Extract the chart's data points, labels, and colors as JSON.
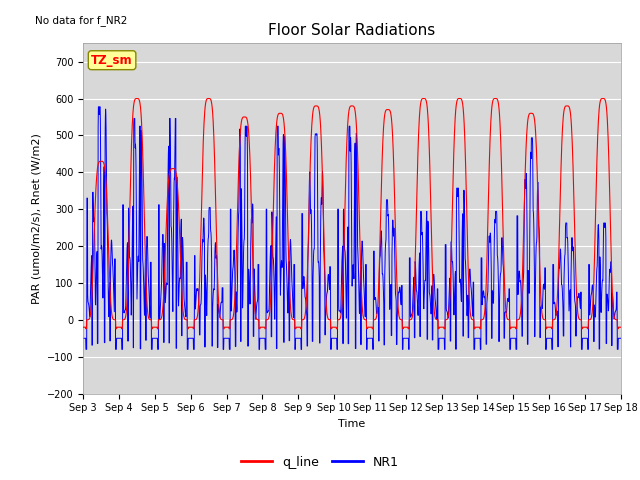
{
  "title": "Floor Solar Radiations",
  "no_data_text": "No data for f_NR2",
  "xlabel": "Time",
  "ylabel": "PAR (umol/m2/s), Rnet (W/m2)",
  "ylim": [
    -200,
    750
  ],
  "yticks": [
    -200,
    -100,
    0,
    100,
    200,
    300,
    400,
    500,
    600,
    700
  ],
  "x_tick_labels": [
    "Sep 3",
    "Sep 4",
    "Sep 5",
    "Sep 6",
    "Sep 7",
    "Sep 8",
    "Sep 9",
    "Sep 10",
    "Sep 11",
    "Sep 12",
    "Sep 13",
    "Sep 14",
    "Sep 15",
    "Sep 16",
    "Sep 17",
    "Sep 18"
  ],
  "legend_box_text": "TZ_sm",
  "legend_box_facecolor": "#ffff99",
  "legend_box_edgecolor": "#888800",
  "line_red_label": "q_line",
  "line_blue_label": "NR1",
  "line_red_color": "#ff0000",
  "line_blue_color": "#0000ff",
  "background_color": "#d8d8d8",
  "red_peaks": [
    430,
    600,
    410,
    600,
    550,
    560,
    580,
    580,
    570,
    600,
    600,
    600,
    560,
    580,
    600
  ],
  "blue_peaks": [
    550,
    520,
    520,
    290,
    500,
    500,
    480,
    500,
    310,
    280,
    340,
    280,
    470,
    250,
    250
  ],
  "night_red": -20,
  "night_blue": -50,
  "blue_dip": -80,
  "title_fontsize": 11,
  "label_fontsize": 8,
  "tick_fontsize": 7
}
